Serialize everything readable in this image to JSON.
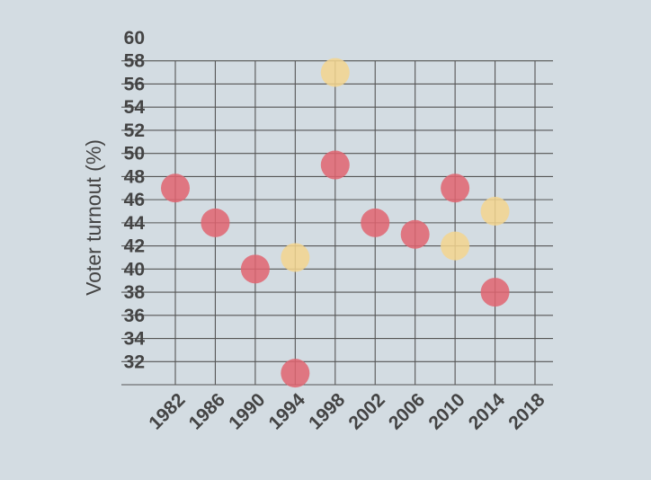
{
  "chart_data": {
    "type": "scatter",
    "title": "",
    "xlabel": "",
    "ylabel": "Voter turnout (%)",
    "xlim": [
      1982,
      2018
    ],
    "ylim": [
      30,
      60
    ],
    "x_ticks": [
      1982,
      1986,
      1990,
      1994,
      1998,
      2002,
      2006,
      2010,
      2014,
      2018
    ],
    "y_ticks": [
      32,
      34,
      36,
      38,
      40,
      42,
      44,
      46,
      48,
      50,
      52,
      54,
      56,
      58,
      60
    ],
    "grid": true,
    "series": [
      {
        "color": "#e06470",
        "points": [
          {
            "x": 1982,
            "y": 47
          },
          {
            "x": 1986,
            "y": 44
          },
          {
            "x": 1990,
            "y": 40
          },
          {
            "x": 1994,
            "y": 31
          },
          {
            "x": 1998,
            "y": 49
          },
          {
            "x": 2002,
            "y": 44
          },
          {
            "x": 2006,
            "y": 43
          },
          {
            "x": 2010,
            "y": 47
          },
          {
            "x": 2014,
            "y": 38
          }
        ]
      },
      {
        "color": "#f3d58e",
        "points": [
          {
            "x": 1994,
            "y": 41
          },
          {
            "x": 1998,
            "y": 57
          },
          {
            "x": 2010,
            "y": 42
          },
          {
            "x": 2014,
            "y": 45
          }
        ]
      }
    ]
  }
}
